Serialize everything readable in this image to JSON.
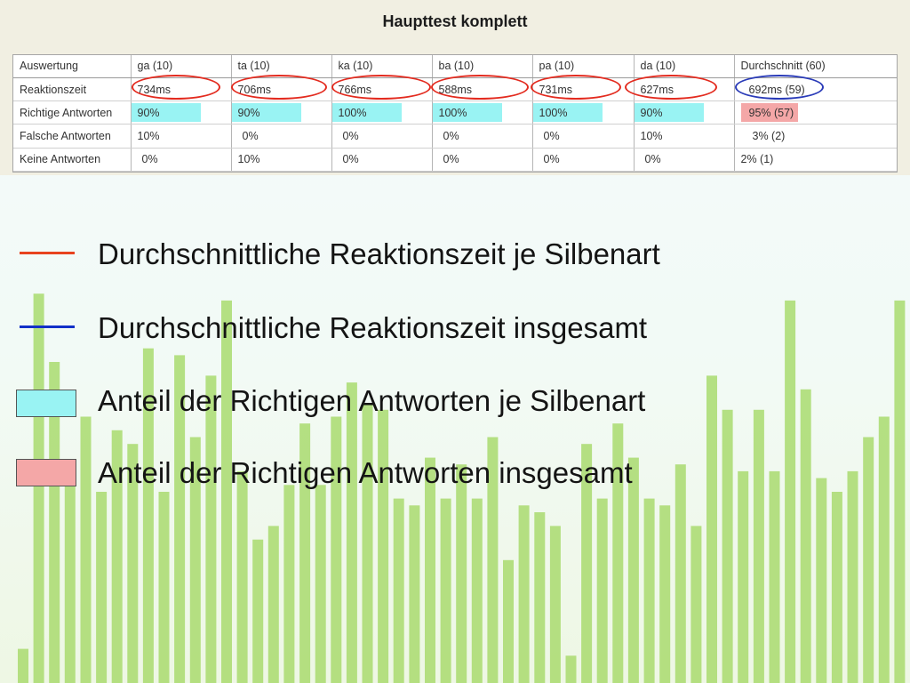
{
  "panel": {
    "title": "Haupttest komplett"
  },
  "table": {
    "header": [
      "Auswertung",
      "ga (10)",
      "ta (10)",
      "ka (10)",
      "ba (10)",
      "pa (10)",
      "da (10)",
      "Durchschnitt (60)"
    ],
    "rows": [
      {
        "label": "Reaktionszeit",
        "values": [
          "734ms",
          "706ms",
          "766ms",
          "588ms",
          "731ms",
          "627ms",
          "692ms (59)"
        ]
      },
      {
        "label": "Richtige Antworten",
        "values": [
          "90%",
          "90%",
          "100%",
          "100%",
          "100%",
          "90%",
          "95% (57)"
        ]
      },
      {
        "label": "Falsche Antworten",
        "values": [
          "10%",
          "0%",
          "0%",
          "0%",
          "0%",
          "10%",
          "3% (2)"
        ]
      },
      {
        "label": "Keine Antworten",
        "values": [
          "0%",
          "10%",
          "0%",
          "0%",
          "0%",
          "0%",
          "2% (1)"
        ]
      }
    ]
  },
  "legend": {
    "items": [
      {
        "text": "Durchschnittliche Reaktionszeit  je Silbenart",
        "swatch": "line",
        "color": "#e8421f"
      },
      {
        "text": "Durchschnittliche Reaktionszeit  insgesamt",
        "swatch": "line",
        "color": "#1230c8"
      },
      {
        "text": "Anteil der Richtigen Antworten je Silbenart",
        "swatch": "box",
        "color": "#99f3f3"
      },
      {
        "text": "Anteil der Richtigen Antworten insgesamt",
        "swatch": "box",
        "color": "#f4a7a7"
      }
    ]
  },
  "colors": {
    "ellipse_per_syllable": "#e32b1f",
    "ellipse_overall": "#2a3bb8",
    "highlight_cyan": "#99f3f3",
    "highlight_pink": "#f4a7a7",
    "decor_bars": "#a9db6f"
  },
  "background_bars": {
    "values": [
      0.05,
      0.57,
      0.47,
      0.31,
      0.39,
      0.28,
      0.37,
      0.35,
      0.49,
      0.28,
      0.48,
      0.36,
      0.45,
      0.56,
      0.31,
      0.21,
      0.23,
      0.29,
      0.38,
      0.29,
      0.39,
      0.44,
      0.41,
      0.4,
      0.27,
      0.26,
      0.33,
      0.27,
      0.32,
      0.27,
      0.36,
      0.18,
      0.26,
      0.25,
      0.23,
      0.04,
      0.35,
      0.27,
      0.38,
      0.33,
      0.27,
      0.26,
      0.32,
      0.23,
      0.45,
      0.4,
      0.31,
      0.4,
      0.31,
      0.56,
      0.43,
      0.3,
      0.28,
      0.31,
      0.36,
      0.39,
      0.56
    ]
  }
}
